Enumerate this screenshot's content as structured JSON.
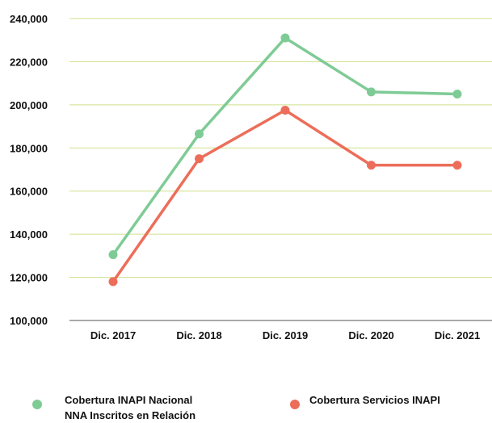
{
  "chart_data": {
    "type": "line",
    "categories": [
      "Dic. 2017",
      "Dic. 2018",
      "Dic. 2019",
      "Dic. 2020",
      "Dic. 2021"
    ],
    "y_ticks": [
      "100,000",
      "120,000",
      "140,000",
      "160,000",
      "180,000",
      "200,000",
      "220,000",
      "240,000"
    ],
    "ylim": [
      100000,
      240000
    ],
    "grid": true,
    "legend_position": "bottom",
    "series": [
      {
        "name": "Cobertura INAPI Nacional\nNNA Inscritos en Relación",
        "color": "#7fcb95",
        "values": [
          130500,
          186500,
          231000,
          206000,
          205000
        ]
      },
      {
        "name": "Cobertura Servicios INAPI",
        "color": "#ec6e5a",
        "values": [
          118000,
          175000,
          197500,
          172000,
          172000
        ]
      }
    ],
    "grid_color": "#cfe08a",
    "axis_color": "#555555"
  }
}
